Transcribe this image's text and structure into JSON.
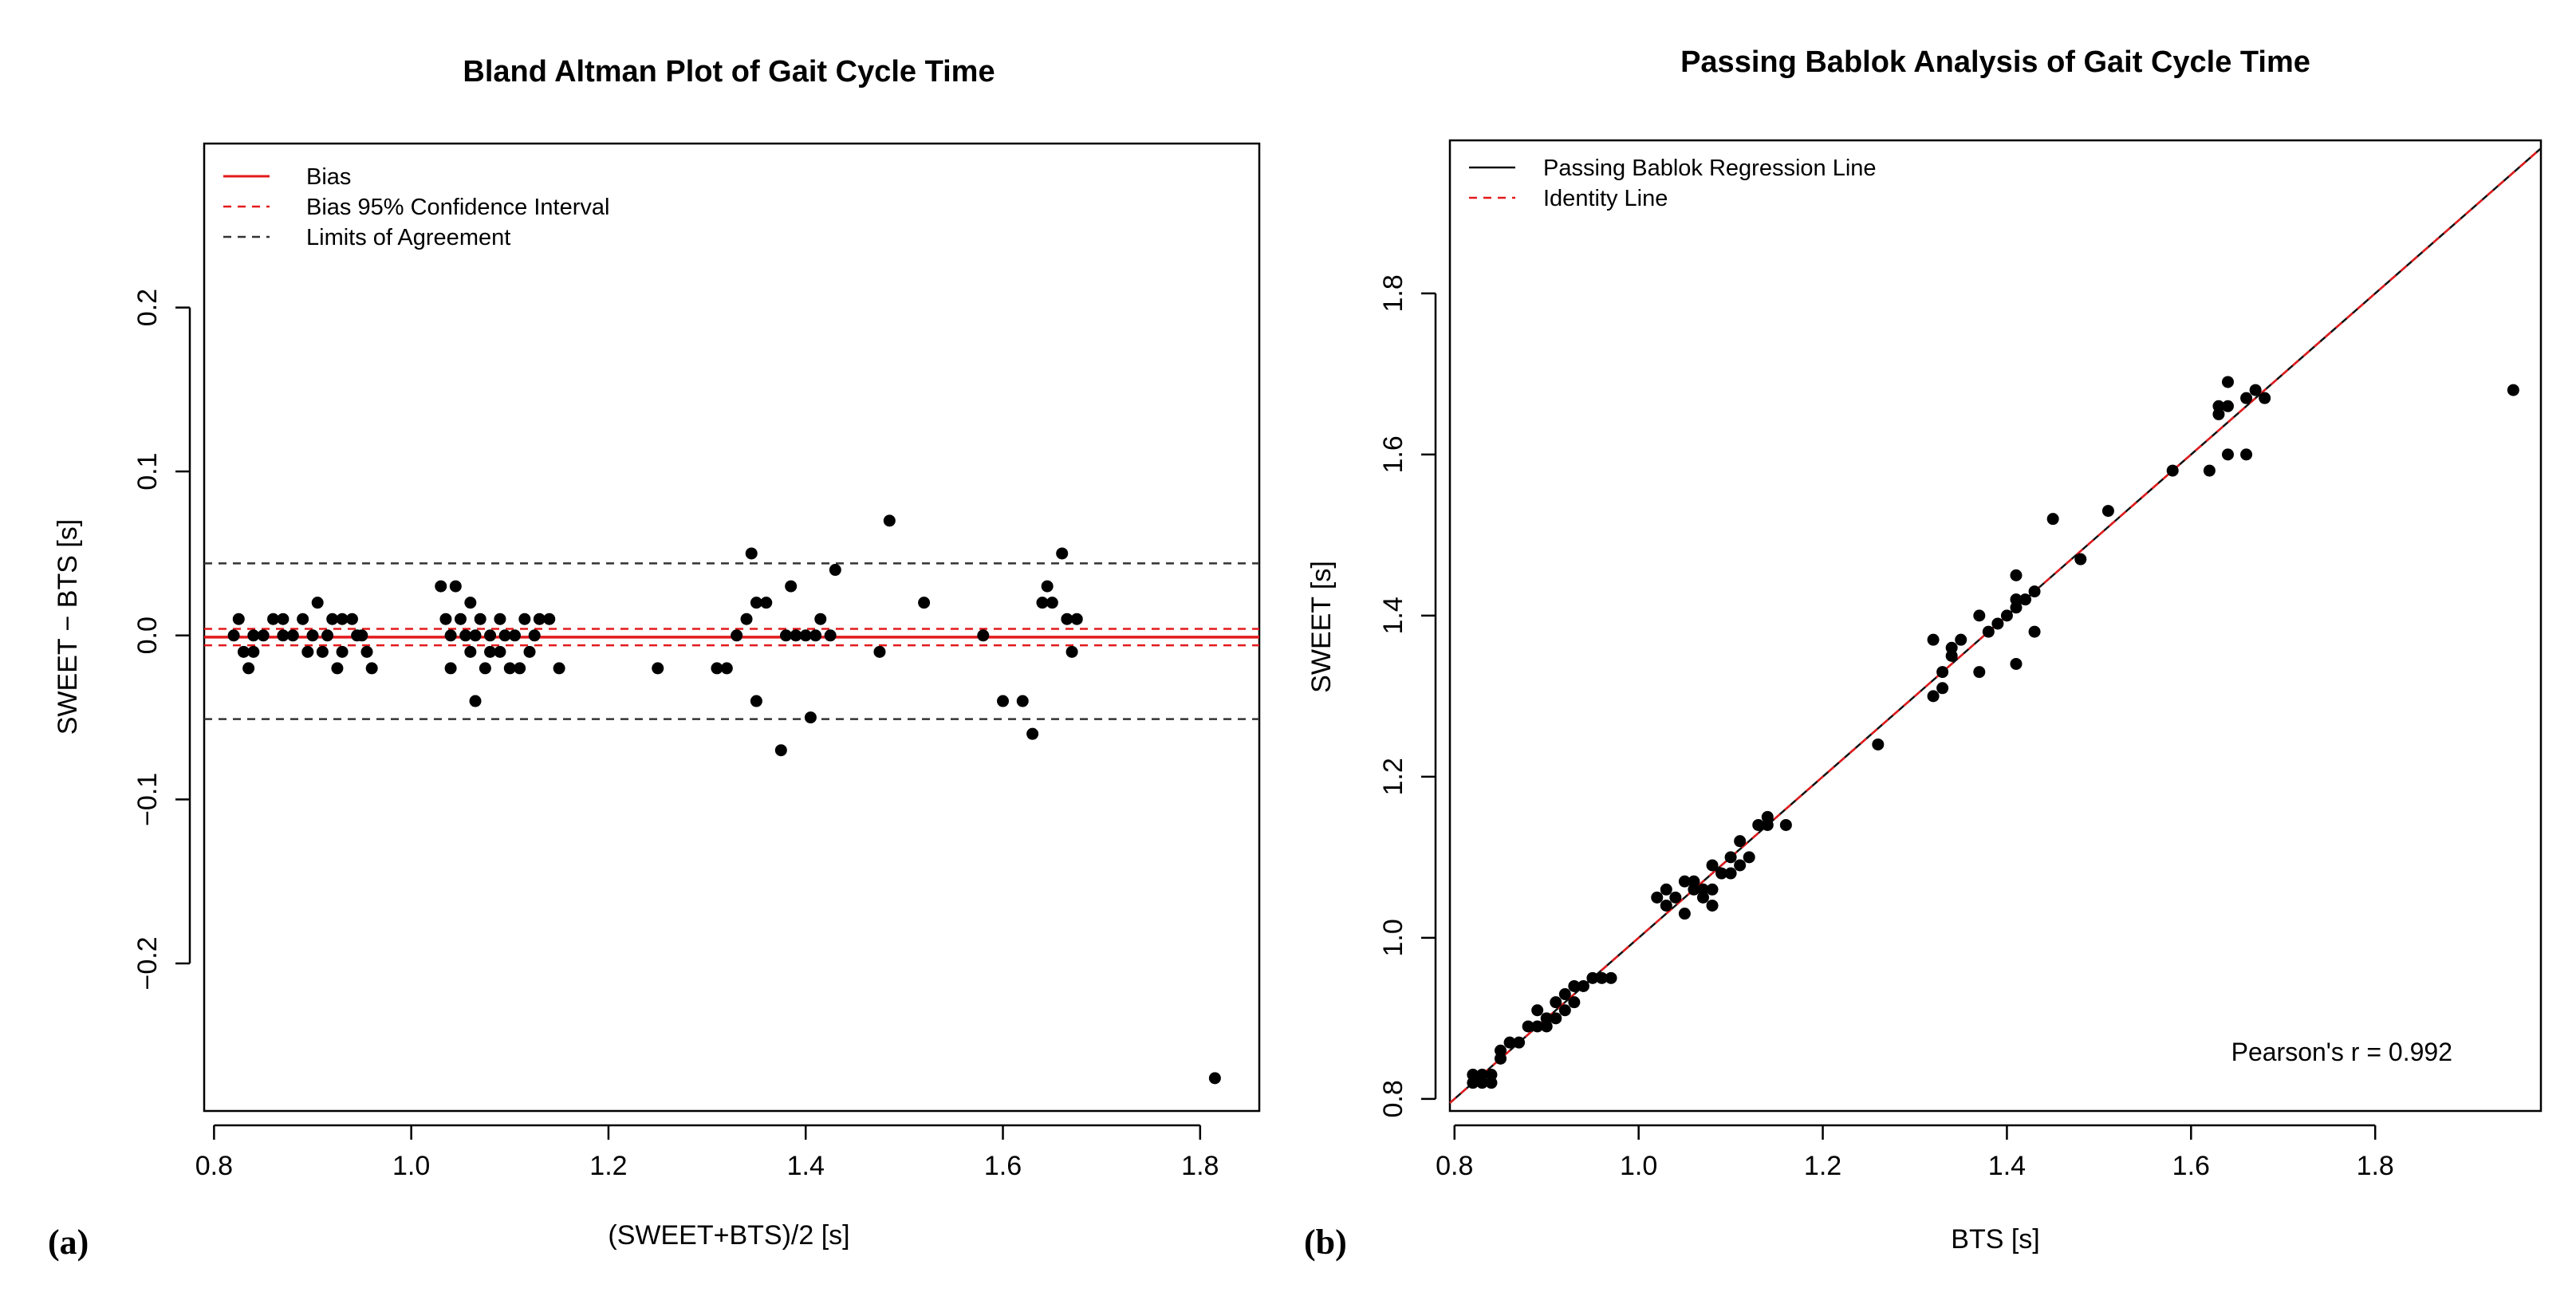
{
  "chart_data": [
    {
      "type": "scatter",
      "panel": "(a)",
      "title": "Bland Altman Plot of Gait Cycle Time",
      "xlabel": "(SWEET+BTS)/2 [s]",
      "ylabel": "SWEET − BTS [s]",
      "xlim": [
        0.79,
        1.86
      ],
      "ylim": [
        -0.29,
        0.3
      ],
      "xticks": [
        0.8,
        1.0,
        1.2,
        1.4,
        1.6,
        1.8
      ],
      "xtick_labels": [
        "0.8",
        "1.0",
        "1.2",
        "1.4",
        "1.6",
        "1.8"
      ],
      "yticks": [
        -0.2,
        -0.1,
        0.0,
        0.1,
        0.2
      ],
      "ytick_labels": [
        "−0.2",
        "−0.1",
        "0.0",
        "0.1",
        "0.2"
      ],
      "legend": {
        "position": "top-left",
        "entries": [
          {
            "label": "Bias",
            "color": "#e31a1c",
            "style": "solid"
          },
          {
            "label": "Bias 95% Confidence Interval",
            "color": "#e31a1c",
            "style": "dashed"
          },
          {
            "label": "Limits of Agreement",
            "color": "#333333",
            "style": "dashed"
          }
        ]
      },
      "lines": [
        {
          "name": "Bias",
          "y": -0.001,
          "color": "#e31a1c",
          "style": "solid"
        },
        {
          "name": "CI upper",
          "y": 0.004,
          "color": "#e31a1c",
          "style": "dashed"
        },
        {
          "name": "CI lower",
          "y": -0.006,
          "color": "#e31a1c",
          "style": "dashed"
        },
        {
          "name": "LoA upper",
          "y": 0.044,
          "color": "#333333",
          "style": "dashed"
        },
        {
          "name": "LoA lower",
          "y": -0.051,
          "color": "#333333",
          "style": "dashed"
        }
      ],
      "points": [
        [
          0.82,
          0.0
        ],
        [
          0.825,
          0.01
        ],
        [
          0.83,
          -0.01
        ],
        [
          0.835,
          -0.02
        ],
        [
          0.84,
          0.0
        ],
        [
          0.84,
          -0.01
        ],
        [
          0.85,
          0.0
        ],
        [
          0.86,
          0.01
        ],
        [
          0.87,
          0.01
        ],
        [
          0.87,
          0.0
        ],
        [
          0.88,
          0.0
        ],
        [
          0.89,
          0.01
        ],
        [
          0.895,
          -0.01
        ],
        [
          0.9,
          0.0
        ],
        [
          0.905,
          0.02
        ],
        [
          0.91,
          -0.01
        ],
        [
          0.915,
          0.0
        ],
        [
          0.92,
          0.01
        ],
        [
          0.925,
          -0.02
        ],
        [
          0.93,
          0.01
        ],
        [
          0.93,
          -0.01
        ],
        [
          0.94,
          0.01
        ],
        [
          0.945,
          0.0
        ],
        [
          0.95,
          0.0
        ],
        [
          0.955,
          -0.01
        ],
        [
          0.96,
          -0.02
        ],
        [
          1.03,
          0.03
        ],
        [
          1.035,
          0.01
        ],
        [
          1.04,
          0.0
        ],
        [
          1.04,
          -0.02
        ],
        [
          1.045,
          0.03
        ],
        [
          1.05,
          0.01
        ],
        [
          1.055,
          0.0
        ],
        [
          1.06,
          0.02
        ],
        [
          1.06,
          -0.01
        ],
        [
          1.065,
          0.0
        ],
        [
          1.065,
          -0.04
        ],
        [
          1.07,
          0.01
        ],
        [
          1.075,
          -0.02
        ],
        [
          1.08,
          0.0
        ],
        [
          1.08,
          -0.01
        ],
        [
          1.09,
          0.01
        ],
        [
          1.09,
          -0.01
        ],
        [
          1.095,
          0.0
        ],
        [
          1.1,
          -0.02
        ],
        [
          1.105,
          0.0
        ],
        [
          1.11,
          -0.02
        ],
        [
          1.115,
          0.01
        ],
        [
          1.12,
          -0.01
        ],
        [
          1.125,
          0.0
        ],
        [
          1.13,
          0.01
        ],
        [
          1.14,
          0.01
        ],
        [
          1.15,
          -0.02
        ],
        [
          1.25,
          -0.02
        ],
        [
          1.31,
          -0.02
        ],
        [
          1.32,
          -0.02
        ],
        [
          1.33,
          0.0
        ],
        [
          1.34,
          0.01
        ],
        [
          1.345,
          0.05
        ],
        [
          1.35,
          -0.04
        ],
        [
          1.35,
          0.02
        ],
        [
          1.36,
          0.02
        ],
        [
          1.375,
          -0.07
        ],
        [
          1.38,
          0.0
        ],
        [
          1.385,
          0.03
        ],
        [
          1.39,
          0.0
        ],
        [
          1.4,
          0.0
        ],
        [
          1.405,
          -0.05
        ],
        [
          1.41,
          0.0
        ],
        [
          1.415,
          0.01
        ],
        [
          1.425,
          0.0
        ],
        [
          1.43,
          0.04
        ],
        [
          1.475,
          -0.01
        ],
        [
          1.485,
          0.07
        ],
        [
          1.52,
          0.02
        ],
        [
          1.58,
          0.0
        ],
        [
          1.6,
          -0.04
        ],
        [
          1.62,
          -0.04
        ],
        [
          1.63,
          -0.06
        ],
        [
          1.64,
          0.02
        ],
        [
          1.645,
          0.03
        ],
        [
          1.65,
          0.02
        ],
        [
          1.66,
          0.05
        ],
        [
          1.665,
          0.01
        ],
        [
          1.67,
          -0.01
        ],
        [
          1.675,
          0.01
        ],
        [
          1.815,
          -0.27
        ]
      ]
    },
    {
      "type": "scatter",
      "panel": "(b)",
      "title": "Passing Bablok Analysis of Gait Cycle Time",
      "xlabel": "BTS [s]",
      "ylabel": "SWEET [s]",
      "xlim": [
        0.795,
        1.98
      ],
      "ylim": [
        0.785,
        1.99
      ],
      "xticks": [
        0.8,
        1.0,
        1.2,
        1.4,
        1.6,
        1.8
      ],
      "xtick_labels": [
        "0.8",
        "1.0",
        "1.2",
        "1.4",
        "1.6",
        "1.8"
      ],
      "yticks": [
        0.8,
        1.0,
        1.2,
        1.4,
        1.6,
        1.8
      ],
      "ytick_labels": [
        "0.8",
        "1.0",
        "1.2",
        "1.4",
        "1.6",
        "1.8"
      ],
      "legend": {
        "position": "top-left",
        "entries": [
          {
            "label": "Passing Bablok Regression Line",
            "color": "#111111",
            "style": "solid"
          },
          {
            "label": "Identity Line",
            "color": "#e31a1c",
            "style": "dashed"
          }
        ]
      },
      "annotation": "Pearson's r = 0.992",
      "regression": {
        "slope": 1.0,
        "intercept": 0.0
      },
      "points": [
        [
          0.82,
          0.83
        ],
        [
          0.82,
          0.82
        ],
        [
          0.83,
          0.83
        ],
        [
          0.83,
          0.82
        ],
        [
          0.84,
          0.83
        ],
        [
          0.84,
          0.82
        ],
        [
          0.85,
          0.85
        ],
        [
          0.85,
          0.86
        ],
        [
          0.86,
          0.87
        ],
        [
          0.87,
          0.87
        ],
        [
          0.88,
          0.89
        ],
        [
          0.89,
          0.89
        ],
        [
          0.89,
          0.91
        ],
        [
          0.9,
          0.89
        ],
        [
          0.9,
          0.9
        ],
        [
          0.91,
          0.9
        ],
        [
          0.91,
          0.92
        ],
        [
          0.92,
          0.91
        ],
        [
          0.92,
          0.93
        ],
        [
          0.93,
          0.92
        ],
        [
          0.93,
          0.94
        ],
        [
          0.94,
          0.94
        ],
        [
          0.95,
          0.95
        ],
        [
          0.96,
          0.95
        ],
        [
          0.97,
          0.95
        ],
        [
          1.02,
          1.05
        ],
        [
          1.03,
          1.06
        ],
        [
          1.03,
          1.04
        ],
        [
          1.04,
          1.05
        ],
        [
          1.05,
          1.03
        ],
        [
          1.05,
          1.07
        ],
        [
          1.06,
          1.06
        ],
        [
          1.06,
          1.07
        ],
        [
          1.07,
          1.05
        ],
        [
          1.07,
          1.06
        ],
        [
          1.08,
          1.04
        ],
        [
          1.08,
          1.06
        ],
        [
          1.08,
          1.09
        ],
        [
          1.09,
          1.08
        ],
        [
          1.1,
          1.08
        ],
        [
          1.1,
          1.1
        ],
        [
          1.11,
          1.12
        ],
        [
          1.11,
          1.09
        ],
        [
          1.12,
          1.1
        ],
        [
          1.13,
          1.14
        ],
        [
          1.14,
          1.15
        ],
        [
          1.14,
          1.14
        ],
        [
          1.16,
          1.14
        ],
        [
          1.26,
          1.24
        ],
        [
          1.32,
          1.37
        ],
        [
          1.32,
          1.3
        ],
        [
          1.33,
          1.31
        ],
        [
          1.33,
          1.33
        ],
        [
          1.34,
          1.36
        ],
        [
          1.34,
          1.35
        ],
        [
          1.35,
          1.37
        ],
        [
          1.37,
          1.4
        ],
        [
          1.37,
          1.33
        ],
        [
          1.38,
          1.38
        ],
        [
          1.39,
          1.39
        ],
        [
          1.4,
          1.4
        ],
        [
          1.41,
          1.42
        ],
        [
          1.41,
          1.41
        ],
        [
          1.41,
          1.45
        ],
        [
          1.41,
          1.34
        ],
        [
          1.42,
          1.42
        ],
        [
          1.43,
          1.43
        ],
        [
          1.43,
          1.38
        ],
        [
          1.45,
          1.52
        ],
        [
          1.48,
          1.47
        ],
        [
          1.51,
          1.53
        ],
        [
          1.58,
          1.58
        ],
        [
          1.62,
          1.58
        ],
        [
          1.63,
          1.66
        ],
        [
          1.63,
          1.65
        ],
        [
          1.64,
          1.69
        ],
        [
          1.64,
          1.66
        ],
        [
          1.64,
          1.6
        ],
        [
          1.66,
          1.67
        ],
        [
          1.66,
          1.6
        ],
        [
          1.67,
          1.68
        ],
        [
          1.68,
          1.67
        ],
        [
          1.95,
          1.68
        ]
      ]
    }
  ]
}
